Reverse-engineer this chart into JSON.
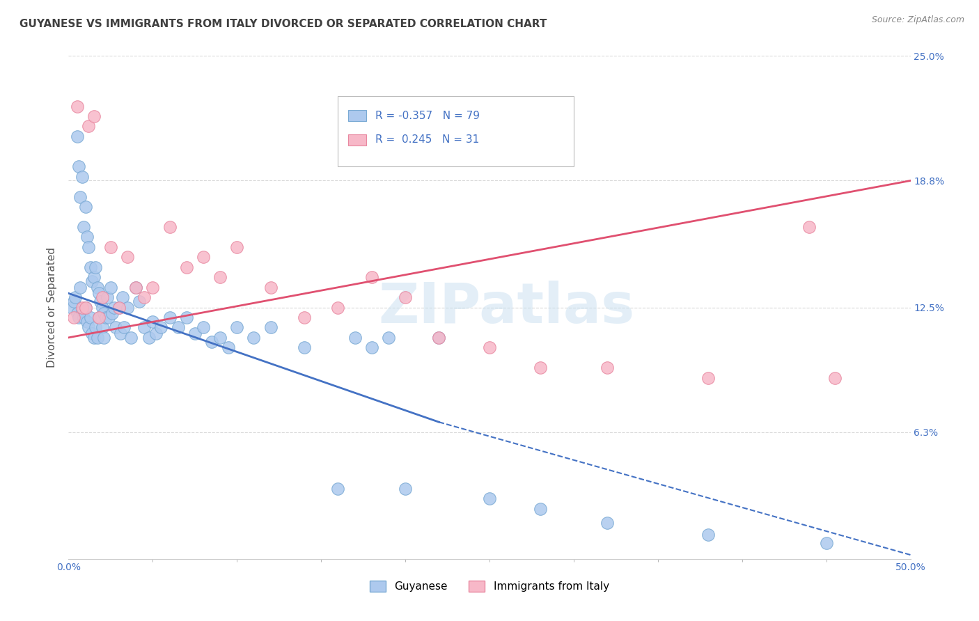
{
  "title": "GUYANESE VS IMMIGRANTS FROM ITALY DIVORCED OR SEPARATED CORRELATION CHART",
  "source": "Source: ZipAtlas.com",
  "ylabel": "Divorced or Separated",
  "x_min": 0.0,
  "x_max": 50.0,
  "y_min": 0.0,
  "y_max": 25.0,
  "y_ticks": [
    6.3,
    12.5,
    18.8,
    25.0
  ],
  "legend_labels": [
    "Guyanese",
    "Immigrants from Italy"
  ],
  "legend_R": [
    -0.357,
    0.245
  ],
  "legend_N": [
    79,
    31
  ],
  "blue_color": "#adc9ee",
  "pink_color": "#f7b8c8",
  "blue_edge": "#7aaad4",
  "pink_edge": "#e888a0",
  "trend_blue": "#4472c4",
  "trend_pink": "#e05070",
  "watermark": "ZIPatlas",
  "background_color": "#ffffff",
  "grid_color": "#d8d8d8",
  "title_color": "#404040",
  "axis_label_color": "#4472c4",
  "blue_x": [
    0.2,
    0.3,
    0.4,
    0.5,
    0.5,
    0.6,
    0.6,
    0.7,
    0.7,
    0.8,
    0.8,
    0.9,
    0.9,
    1.0,
    1.0,
    1.1,
    1.1,
    1.2,
    1.2,
    1.3,
    1.3,
    1.4,
    1.4,
    1.5,
    1.5,
    1.6,
    1.6,
    1.7,
    1.7,
    1.8,
    1.8,
    1.9,
    2.0,
    2.0,
    2.1,
    2.1,
    2.2,
    2.3,
    2.4,
    2.5,
    2.6,
    2.7,
    2.8,
    3.0,
    3.1,
    3.2,
    3.3,
    3.5,
    3.7,
    4.0,
    4.2,
    4.5,
    4.8,
    5.0,
    5.2,
    5.5,
    6.0,
    6.5,
    7.0,
    7.5,
    8.0,
    8.5,
    9.0,
    9.5,
    10.0,
    11.0,
    12.0,
    14.0,
    16.0,
    17.0,
    18.0,
    19.0,
    20.0,
    22.0,
    25.0,
    28.0,
    32.0,
    38.0,
    45.0
  ],
  "blue_y": [
    12.5,
    12.8,
    13.0,
    21.0,
    12.2,
    19.5,
    12.0,
    18.0,
    13.5,
    19.0,
    12.3,
    16.5,
    12.0,
    17.5,
    12.5,
    16.0,
    11.8,
    15.5,
    11.5,
    14.5,
    12.0,
    13.8,
    11.2,
    14.0,
    11.0,
    14.5,
    11.5,
    13.5,
    11.0,
    13.2,
    12.0,
    12.8,
    12.5,
    11.5,
    12.2,
    11.0,
    12.0,
    13.0,
    12.0,
    13.5,
    12.2,
    12.5,
    11.5,
    12.5,
    11.2,
    13.0,
    11.5,
    12.5,
    11.0,
    13.5,
    12.8,
    11.5,
    11.0,
    11.8,
    11.2,
    11.5,
    12.0,
    11.5,
    12.0,
    11.2,
    11.5,
    10.8,
    11.0,
    10.5,
    11.5,
    11.0,
    11.5,
    10.5,
    3.5,
    11.0,
    10.5,
    11.0,
    3.5,
    11.0,
    3.0,
    2.5,
    1.8,
    1.2,
    0.8
  ],
  "pink_x": [
    0.3,
    0.5,
    0.8,
    1.0,
    1.2,
    1.5,
    1.8,
    2.0,
    2.5,
    3.0,
    3.5,
    4.0,
    4.5,
    5.0,
    6.0,
    7.0,
    8.0,
    9.0,
    10.0,
    12.0,
    14.0,
    16.0,
    18.0,
    20.0,
    22.0,
    25.0,
    28.0,
    32.0,
    38.0,
    44.0,
    45.5
  ],
  "pink_y": [
    12.0,
    22.5,
    12.5,
    12.5,
    21.5,
    22.0,
    12.0,
    13.0,
    15.5,
    12.5,
    15.0,
    13.5,
    13.0,
    13.5,
    16.5,
    14.5,
    15.0,
    14.0,
    15.5,
    13.5,
    12.0,
    12.5,
    14.0,
    13.0,
    11.0,
    10.5,
    9.5,
    9.5,
    9.0,
    16.5,
    9.0
  ],
  "blue_trend_x0": 0.0,
  "blue_trend_x_solid_end": 22.0,
  "blue_trend_x1": 50.0,
  "blue_trend_y0": 13.2,
  "blue_trend_y_solid_end": 6.8,
  "blue_trend_y1": 0.2,
  "pink_trend_x0": 0.0,
  "pink_trend_x1": 50.0,
  "pink_trend_y0": 11.0,
  "pink_trend_y1": 18.8
}
